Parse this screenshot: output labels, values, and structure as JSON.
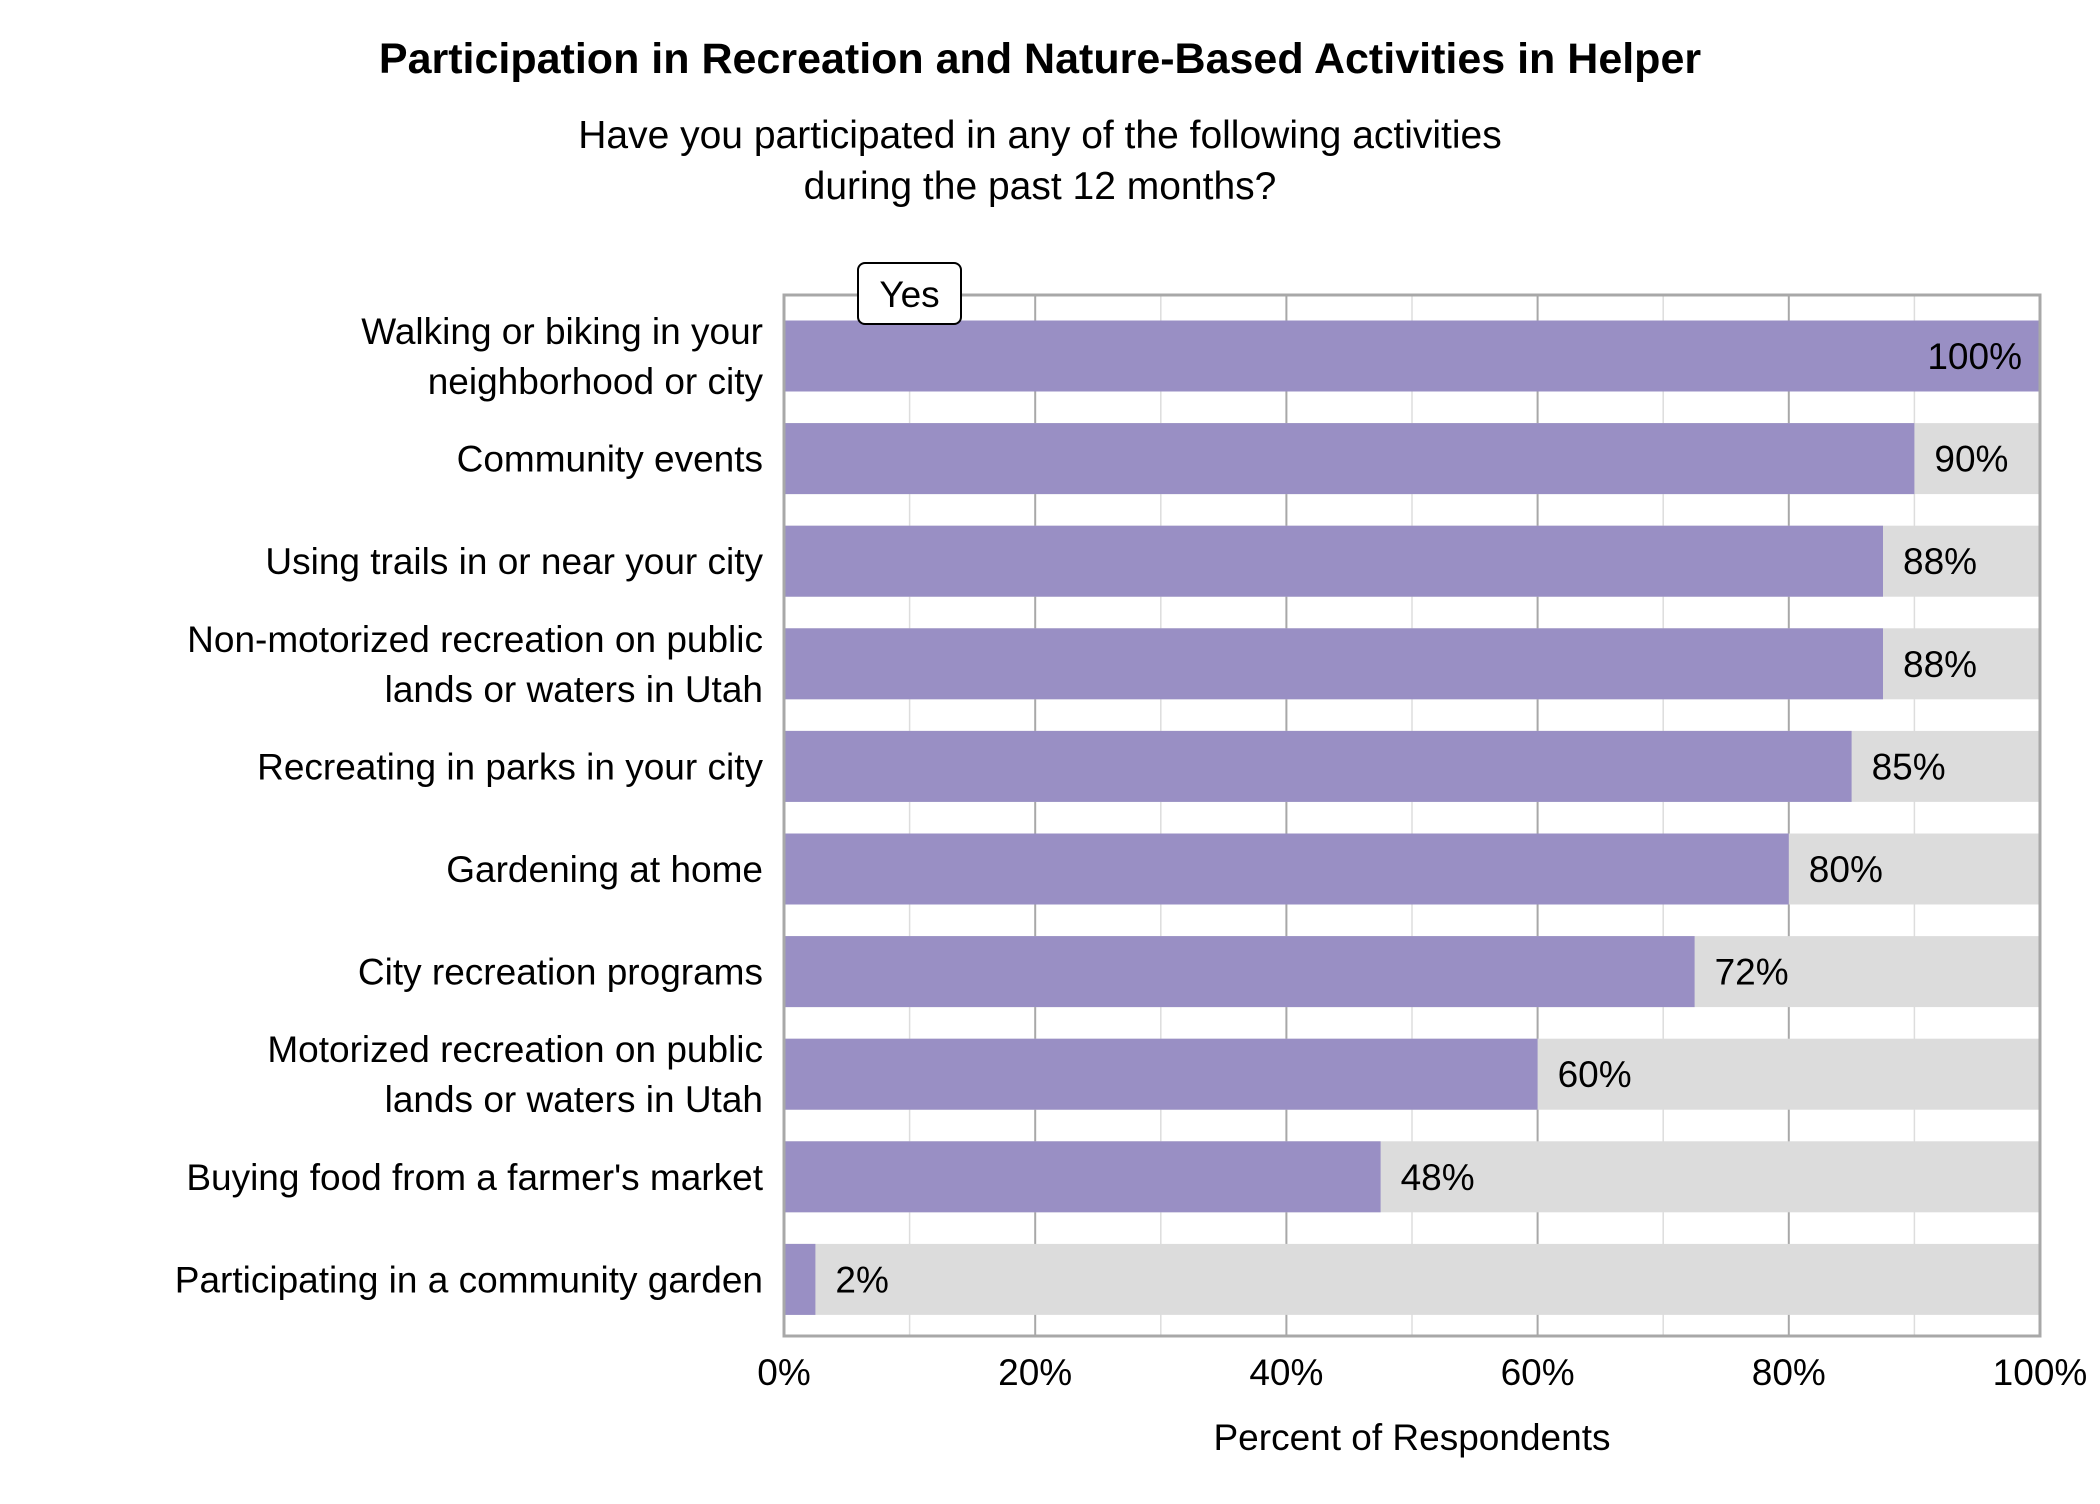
{
  "chart_data": {
    "type": "bar",
    "orientation": "horizontal",
    "stacked": true,
    "title": "Participation in Recreation and Nature-Based Activities in Helper",
    "subtitle": [
      "Have you participated in any of the following activities",
      "during the past 12 months?"
    ],
    "xlabel": "Percent of Respondents",
    "ylabel": "",
    "xlim": [
      0,
      100
    ],
    "xticks": [
      "0%",
      "20%",
      "40%",
      "60%",
      "80%",
      "100%"
    ],
    "grid": true,
    "legend": {
      "position": "top-left",
      "entries": [
        "Yes"
      ]
    },
    "categories": [
      [
        "Walking or biking in your",
        "neighborhood or city"
      ],
      [
        "Community events"
      ],
      [
        "Using trails in or near your city"
      ],
      [
        "Non-motorized recreation on public",
        "lands or waters in Utah"
      ],
      [
        "Recreating in parks in your city"
      ],
      [
        "Gardening at home"
      ],
      [
        "City recreation programs"
      ],
      [
        "Motorized recreation on public",
        "lands or waters in Utah"
      ],
      [
        "Buying food from a farmer's market"
      ],
      [
        "Participating in a community garden"
      ]
    ],
    "series": [
      {
        "name": "Yes",
        "values": [
          100,
          90,
          87.5,
          87.5,
          85,
          80,
          72.5,
          60,
          47.5,
          2.5
        ],
        "labels": [
          "100%",
          "90%",
          "88%",
          "88%",
          "85%",
          "80%",
          "72%",
          "60%",
          "48%",
          "2%"
        ]
      }
    ],
    "colors": {
      "yes": "#998fc4",
      "remainder": "#dcdcdc",
      "grid_major": "#a8a8a8",
      "grid_minor": "#dddddd",
      "frame": "#a8a8a8"
    }
  }
}
